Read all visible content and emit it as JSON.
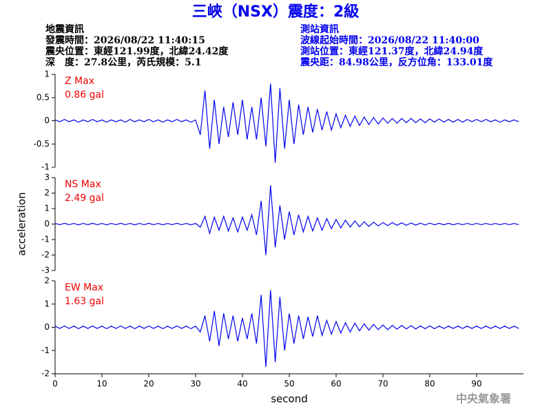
{
  "header": {
    "title": "三峽（NSX）震度：2級",
    "left": [
      "地震資訊",
      "發震時間：2026/08/22 11:40:15",
      "震央位置：東經121.99度，北緯24.42度",
      "深　度：27.8公里，芮氏規模：5.1"
    ],
    "right": [
      "測站資訊",
      "波線起始時間：2026/08/22 11:40:00",
      "測站位置：東經121.37度，北緯24.94度",
      "震央距：84.98公里，反方位角：133.01度"
    ],
    "footer": "中央氣象署"
  },
  "chart_data": [
    {
      "type": "line",
      "annotation": [
        "Z Max",
        "0.86 gal"
      ],
      "annotation_color": "#ee0000",
      "xlim": [
        0,
        100
      ],
      "ylim": [
        -1,
        1
      ],
      "yticks": [
        -1,
        -0.5,
        0,
        0.5,
        1
      ],
      "x": [
        0,
        1,
        2,
        3,
        4,
        5,
        6,
        7,
        8,
        9,
        10,
        11,
        12,
        13,
        14,
        15,
        16,
        17,
        18,
        19,
        20,
        21,
        22,
        23,
        24,
        25,
        26,
        27,
        28,
        29,
        30,
        31,
        32,
        33,
        34,
        35,
        36,
        37,
        38,
        39,
        40,
        41,
        42,
        43,
        44,
        45,
        46,
        47,
        48,
        49,
        50,
        51,
        52,
        53,
        54,
        55,
        56,
        57,
        58,
        59,
        60,
        61,
        62,
        63,
        64,
        65,
        66,
        67,
        68,
        69,
        70,
        71,
        72,
        73,
        74,
        75,
        76,
        77,
        78,
        79,
        80,
        81,
        82,
        83,
        84,
        85,
        86,
        87,
        88,
        89,
        90,
        91,
        92,
        93,
        94,
        95,
        96,
        97,
        98,
        99
      ],
      "series": [
        {
          "color": "#0000ee",
          "values": [
            0.02,
            -0.02,
            0.03,
            -0.02,
            0.02,
            -0.03,
            0.02,
            -0.02,
            0.03,
            -0.02,
            0.02,
            -0.03,
            0.02,
            -0.02,
            0.02,
            -0.03,
            0.03,
            -0.02,
            0.02,
            -0.02,
            0.03,
            -0.02,
            0.02,
            -0.03,
            0.02,
            -0.02,
            0.03,
            -0.02,
            0.02,
            -0.03,
            0.02,
            -0.3,
            0.65,
            -0.6,
            0.45,
            -0.5,
            0.3,
            -0.35,
            0.4,
            -0.3,
            0.45,
            -0.4,
            0.3,
            -0.4,
            0.5,
            -0.55,
            0.8,
            -0.9,
            0.7,
            -0.6,
            0.45,
            -0.5,
            0.35,
            -0.3,
            0.3,
            -0.25,
            0.25,
            -0.2,
            0.2,
            -0.2,
            0.15,
            -0.15,
            0.12,
            -0.12,
            0.1,
            -0.1,
            0.08,
            -0.08,
            0.07,
            -0.07,
            0.06,
            -0.05,
            0.05,
            -0.05,
            0.05,
            -0.04,
            0.05,
            -0.04,
            0.04,
            -0.04,
            0.04,
            -0.03,
            0.04,
            -0.03,
            0.03,
            -0.03,
            0.03,
            -0.03,
            0.03,
            -0.02,
            0.03,
            -0.02,
            0.03,
            -0.02,
            0.02,
            -0.03,
            0.02,
            -0.02,
            0.02,
            -0.02
          ]
        }
      ]
    },
    {
      "type": "line",
      "annotation": [
        "NS Max",
        "2.49 gal"
      ],
      "annotation_color": "#ee0000",
      "ylabel": "acceleration",
      "xlim": [
        0,
        100
      ],
      "ylim": [
        -3,
        3
      ],
      "yticks": [
        -3,
        -2,
        -1,
        0,
        1,
        2,
        3
      ],
      "x": [
        0,
        1,
        2,
        3,
        4,
        5,
        6,
        7,
        8,
        9,
        10,
        11,
        12,
        13,
        14,
        15,
        16,
        17,
        18,
        19,
        20,
        21,
        22,
        23,
        24,
        25,
        26,
        27,
        28,
        29,
        30,
        31,
        32,
        33,
        34,
        35,
        36,
        37,
        38,
        39,
        40,
        41,
        42,
        43,
        44,
        45,
        46,
        47,
        48,
        49,
        50,
        51,
        52,
        53,
        54,
        55,
        56,
        57,
        58,
        59,
        60,
        61,
        62,
        63,
        64,
        65,
        66,
        67,
        68,
        69,
        70,
        71,
        72,
        73,
        74,
        75,
        76,
        77,
        78,
        79,
        80,
        81,
        82,
        83,
        84,
        85,
        86,
        87,
        88,
        89,
        90,
        91,
        92,
        93,
        94,
        95,
        96,
        97,
        98,
        99
      ],
      "series": [
        {
          "color": "#0000ee",
          "values": [
            0.04,
            -0.04,
            0.05,
            -0.04,
            0.04,
            -0.05,
            0.04,
            -0.04,
            0.05,
            -0.04,
            0.04,
            -0.05,
            0.04,
            -0.04,
            0.05,
            -0.04,
            0.04,
            -0.05,
            0.04,
            -0.04,
            0.05,
            -0.04,
            0.04,
            -0.05,
            0.04,
            -0.04,
            0.05,
            -0.04,
            0.04,
            -0.05,
            0.04,
            -0.2,
            0.5,
            -0.6,
            0.45,
            -0.4,
            0.5,
            -0.45,
            0.4,
            -0.5,
            0.45,
            -0.4,
            0.6,
            -0.7,
            1.5,
            -2.0,
            2.5,
            -1.5,
            1.2,
            -1.0,
            0.8,
            -0.7,
            0.6,
            -0.5,
            0.5,
            -0.45,
            0.4,
            -0.4,
            0.35,
            -0.3,
            0.3,
            -0.25,
            0.25,
            -0.2,
            0.2,
            -0.18,
            0.15,
            -0.15,
            0.12,
            -0.12,
            0.1,
            -0.1,
            0.1,
            -0.08,
            0.08,
            -0.08,
            0.07,
            -0.07,
            0.06,
            -0.06,
            0.06,
            -0.05,
            0.05,
            -0.05,
            0.05,
            -0.05,
            0.04,
            -0.04,
            0.04,
            -0.04,
            0.04,
            -0.04,
            0.04,
            -0.04,
            0.04,
            -0.04,
            0.04,
            -0.04,
            0.04,
            -0.04
          ]
        }
      ]
    },
    {
      "type": "line",
      "annotation": [
        "EW Max",
        "1.63 gal"
      ],
      "annotation_color": "#ee0000",
      "xlabel": "second",
      "xlim": [
        0,
        100
      ],
      "ylim": [
        -2,
        2
      ],
      "yticks": [
        -2,
        -1,
        0,
        1,
        2
      ],
      "xticks": [
        0,
        10,
        20,
        30,
        40,
        50,
        60,
        70,
        80,
        90
      ],
      "x": [
        0,
        1,
        2,
        3,
        4,
        5,
        6,
        7,
        8,
        9,
        10,
        11,
        12,
        13,
        14,
        15,
        16,
        17,
        18,
        19,
        20,
        21,
        22,
        23,
        24,
        25,
        26,
        27,
        28,
        29,
        30,
        31,
        32,
        33,
        34,
        35,
        36,
        37,
        38,
        39,
        40,
        41,
        42,
        43,
        44,
        45,
        46,
        47,
        48,
        49,
        50,
        51,
        52,
        53,
        54,
        55,
        56,
        57,
        58,
        59,
        60,
        61,
        62,
        63,
        64,
        65,
        66,
        67,
        68,
        69,
        70,
        71,
        72,
        73,
        74,
        75,
        76,
        77,
        78,
        79,
        80,
        81,
        82,
        83,
        84,
        85,
        86,
        87,
        88,
        89,
        90,
        91,
        92,
        93,
        94,
        95,
        96,
        97,
        98,
        99
      ],
      "series": [
        {
          "color": "#0000ee",
          "values": [
            0.05,
            -0.05,
            0.06,
            -0.05,
            0.05,
            -0.06,
            0.05,
            -0.05,
            0.06,
            -0.05,
            0.05,
            -0.06,
            0.05,
            -0.05,
            0.06,
            -0.05,
            0.05,
            -0.06,
            0.05,
            -0.05,
            0.06,
            -0.05,
            0.05,
            -0.06,
            0.05,
            -0.05,
            0.06,
            -0.05,
            0.05,
            -0.06,
            0.05,
            -0.2,
            0.5,
            -0.6,
            0.7,
            -0.8,
            0.6,
            -0.5,
            0.5,
            -0.6,
            0.4,
            -0.5,
            0.6,
            -0.7,
            1.4,
            -1.7,
            1.6,
            -1.5,
            1.3,
            -1.0,
            0.6,
            -0.7,
            0.5,
            -0.5,
            0.45,
            -0.4,
            0.5,
            -0.35,
            0.3,
            -0.3,
            0.25,
            -0.25,
            0.2,
            -0.2,
            0.18,
            -0.15,
            0.15,
            -0.12,
            0.12,
            -0.1,
            0.1,
            -0.1,
            0.08,
            -0.08,
            0.08,
            -0.07,
            0.07,
            -0.07,
            0.06,
            -0.06,
            0.06,
            -0.06,
            0.05,
            -0.05,
            0.05,
            -0.05,
            0.05,
            -0.05,
            0.05,
            -0.05,
            0.05,
            -0.05,
            0.05,
            -0.05,
            0.05,
            -0.05,
            0.05,
            -0.05,
            0.05,
            -0.05
          ]
        }
      ]
    }
  ]
}
